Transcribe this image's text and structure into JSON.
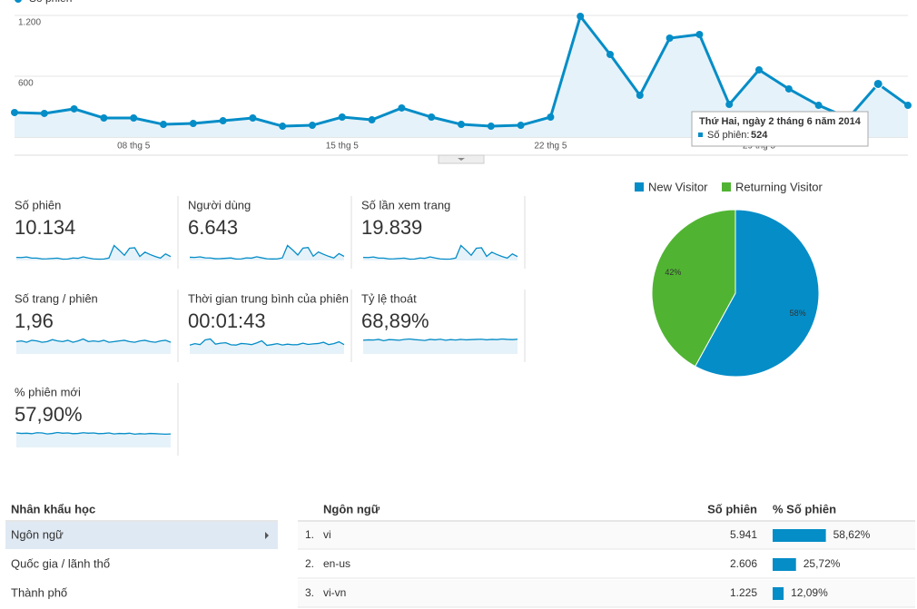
{
  "main_chart": {
    "type": "line",
    "legend": "Số phiên",
    "color": "#058dc7",
    "categories": [
      null,
      null,
      null,
      null,
      "08 thg 5",
      null,
      null,
      null,
      null,
      null,
      null,
      "15 thg 5",
      null,
      null,
      null,
      null,
      null,
      null,
      "22 thg 5",
      null,
      null,
      null,
      null,
      null,
      null,
      "29 thg 5",
      null,
      null,
      null,
      null,
      null
    ],
    "values": [
      242,
      233,
      278,
      188,
      188,
      125,
      134,
      161,
      188,
      107,
      116,
      197,
      170,
      287,
      197,
      125,
      107,
      116,
      197,
      1191,
      815,
      412,
      976,
      1012,
      322,
      663,
      475,
      313,
      188,
      524,
      313
    ],
    "ylim": [
      0,
      1200
    ],
    "yticks": [
      {
        "value": 1200,
        "label": "1.200"
      },
      {
        "value": 600,
        "label": "600"
      }
    ],
    "tooltip": {
      "date": "Thứ Hai, ngày 2 tháng 6 năm 2014",
      "label": "Số phiên:"
    }
  },
  "metrics": [
    {
      "label": "Số phiên",
      "value": "10.134",
      "trend": [
        242,
        233,
        278,
        188,
        188,
        125,
        134,
        161,
        188,
        107,
        116,
        197,
        170,
        287,
        197,
        125,
        107,
        116,
        197,
        1191,
        815,
        412,
        976,
        1012,
        322,
        663,
        475,
        313,
        188,
        524,
        313
      ]
    },
    {
      "label": "Người dùng",
      "value": "6.643",
      "trend": [
        160,
        152,
        180,
        128,
        125,
        88,
        92,
        110,
        126,
        74,
        80,
        130,
        115,
        185,
        132,
        85,
        75,
        80,
        130,
        740,
        520,
        270,
        610,
        640,
        210,
        420,
        305,
        205,
        125,
        340,
        205
      ]
    },
    {
      "label": "Số lần xem trang",
      "value": "19.839",
      "trend": [
        470,
        455,
        540,
        365,
        370,
        245,
        260,
        315,
        365,
        210,
        225,
        385,
        330,
        560,
        385,
        245,
        210,
        225,
        385,
        2320,
        1590,
        800,
        1900,
        1970,
        630,
        1290,
        925,
        610,
        365,
        1020,
        610
      ]
    },
    {
      "label": "Số trang / phiên",
      "value": "1,96",
      "trend": [
        1.9,
        2.0,
        1.8,
        2.1,
        2.0,
        1.8,
        1.9,
        2.2,
        2.0,
        1.9,
        2.1,
        1.8,
        2.0,
        2.3,
        1.9,
        2.0,
        1.9,
        2.1,
        1.8,
        1.9,
        2.0,
        2.1,
        1.9,
        1.8,
        2.0,
        2.1,
        1.9,
        1.8,
        2.0,
        2.1,
        1.8
      ]
    },
    {
      "label": "Thời gian trung bình của phiên",
      "value": "00:01:43",
      "trend": [
        95,
        110,
        100,
        150,
        160,
        105,
        115,
        120,
        98,
        95,
        112,
        108,
        100,
        118,
        140,
        92,
        100,
        110,
        96,
        105,
        98,
        100,
        115,
        102,
        108,
        112,
        125,
        100,
        110,
        130,
        100
      ]
    },
    {
      "label": "Tỷ lệ thoát",
      "value": "68,89%",
      "trend": [
        66,
        68,
        67,
        70,
        64,
        69,
        68,
        66,
        70,
        72,
        69,
        67,
        65,
        70,
        68,
        71,
        66,
        69,
        67,
        70,
        68,
        69,
        70,
        71,
        68,
        70,
        69,
        72,
        70,
        69,
        71
      ]
    },
    {
      "label": "% phiên mới",
      "value": "57,90%",
      "trend": [
        60,
        58,
        59,
        57,
        61,
        60,
        56,
        58,
        62,
        59,
        60,
        57,
        58,
        61,
        59,
        60,
        57,
        58,
        60,
        56,
        58,
        57,
        59,
        55,
        57,
        56,
        58,
        57,
        56,
        55,
        56
      ]
    }
  ],
  "pie": {
    "type": "pie",
    "series": [
      {
        "name": "New Visitor",
        "color": "#058dc7",
        "value": 58,
        "value_label": "58%"
      },
      {
        "name": "Returning Visitor",
        "color": "#50b432",
        "value": 42,
        "value_label": "42%"
      }
    ]
  },
  "sidebar": {
    "title": "Nhân khẩu học",
    "items": [
      "Ngôn ngữ",
      "Quốc gia / lãnh thổ",
      "Thành phố"
    ]
  },
  "table": {
    "headers": [
      "Ngôn ngữ",
      "Số phiên",
      "% Số phiên"
    ],
    "rows": [
      {
        "rank": "1.",
        "name": "vi",
        "sessions": "5.941",
        "pct": 58.62,
        "pct_label": "58,62%"
      },
      {
        "rank": "2.",
        "name": "en-us",
        "sessions": "2.606",
        "pct": 25.72,
        "pct_label": "25,72%"
      },
      {
        "rank": "3.",
        "name": "vi-vn",
        "sessions": "1.225",
        "pct": 12.09,
        "pct_label": "12,09%"
      }
    ]
  }
}
